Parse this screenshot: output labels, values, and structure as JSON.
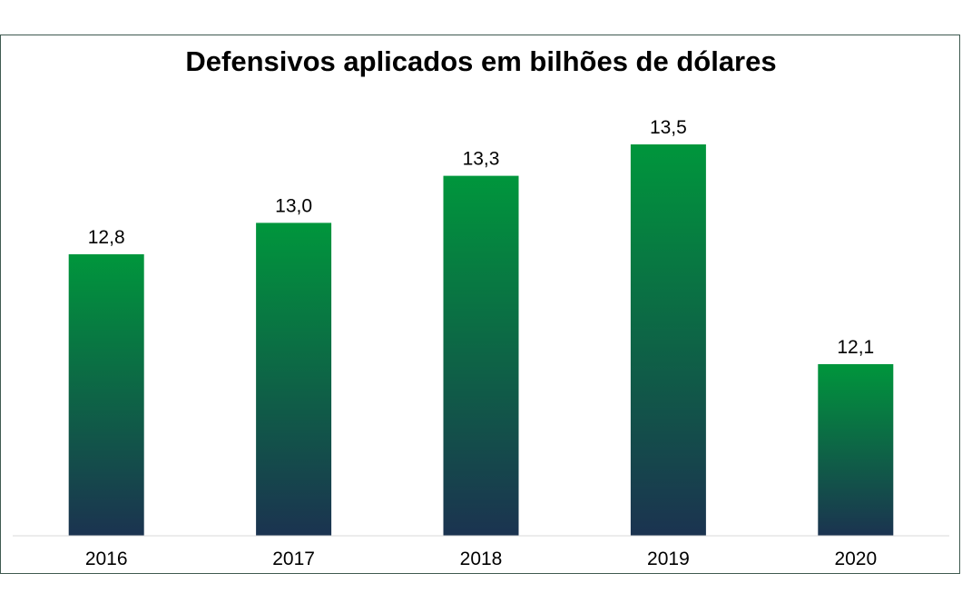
{
  "chart_data": {
    "type": "bar",
    "title": "Defensivos aplicados em bilhões de dólares",
    "categories": [
      "2016",
      "2017",
      "2018",
      "2019",
      "2020"
    ],
    "values": [
      12.8,
      13.0,
      13.3,
      13.5,
      12.1
    ],
    "value_labels": [
      "12,8",
      "13,0",
      "13,3",
      "13,5",
      "12,1"
    ],
    "xlabel": "",
    "ylabel": "",
    "grid": false,
    "legend": "none",
    "colors": {
      "bar_top": "#00963c",
      "bar_bottom": "#1b3350",
      "axis": "#d9d9d9",
      "border": "#3f5a50"
    }
  }
}
